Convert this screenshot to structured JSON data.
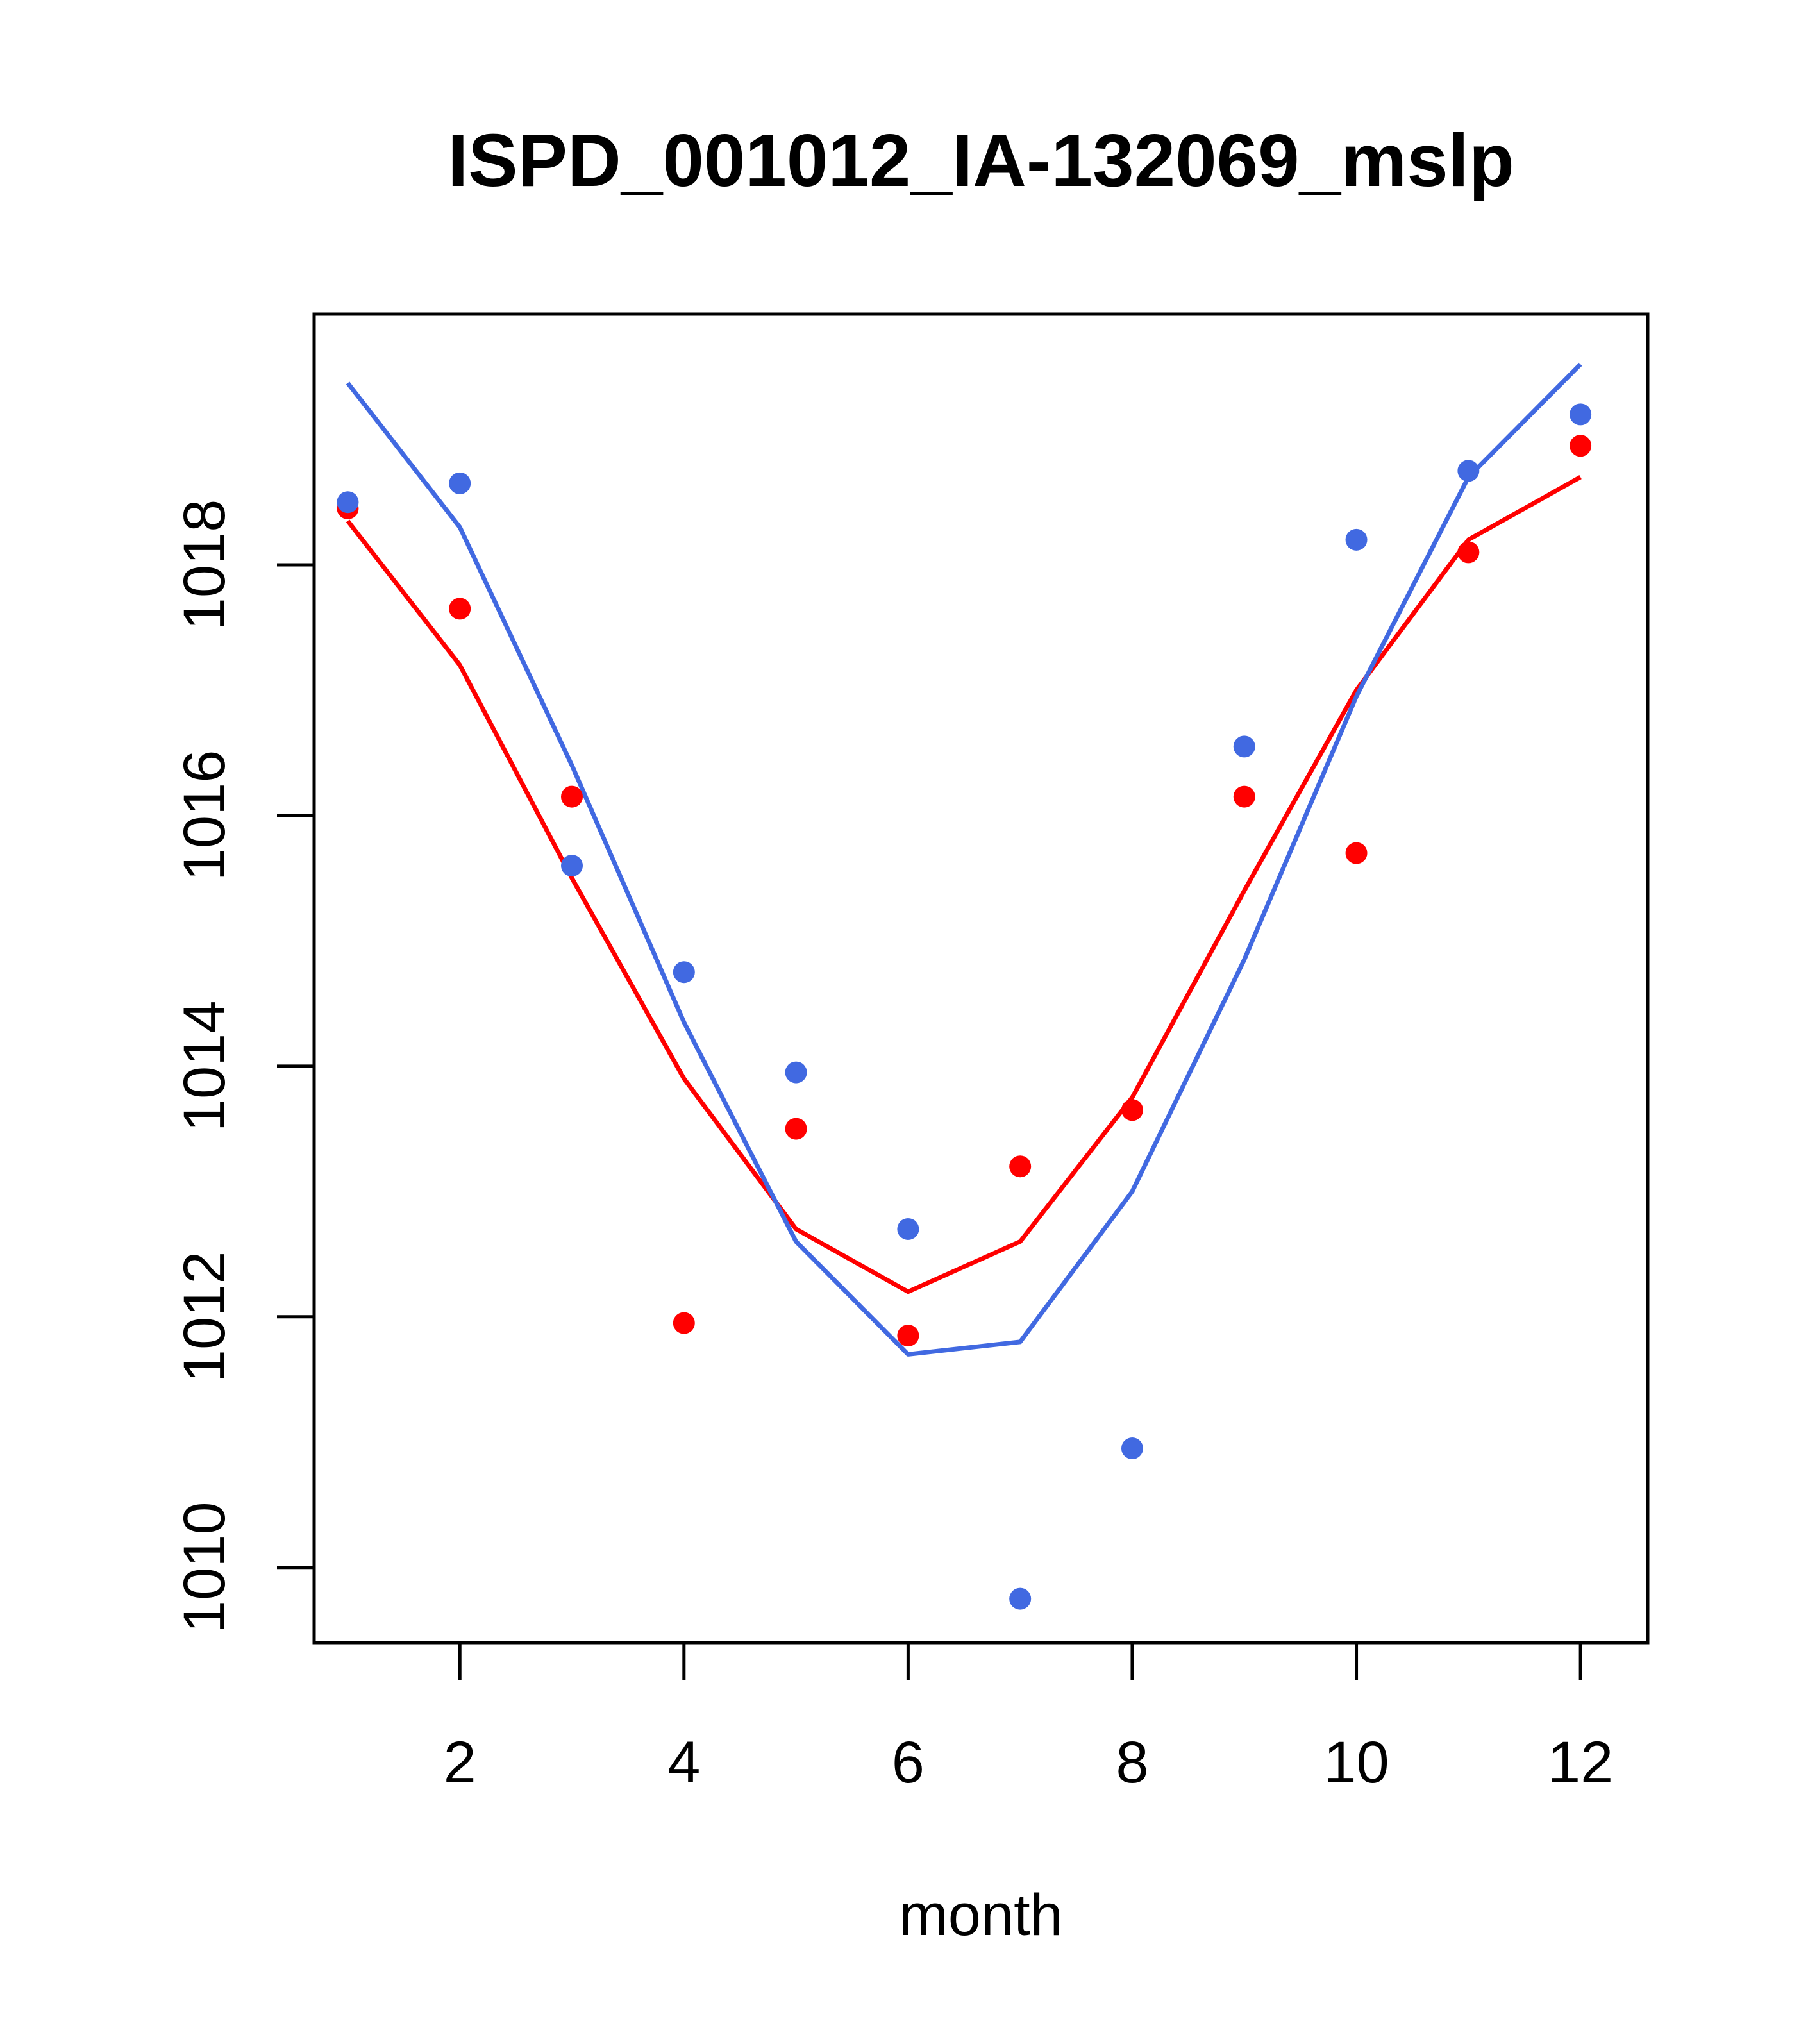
{
  "chart_data": {
    "type": "scatter",
    "title": "ISPD_001012_IA-132069_mslp",
    "xlabel": "month",
    "ylabel": "",
    "xlim": [
      0.7,
      12.6
    ],
    "ylim": [
      1009.4,
      1020.0
    ],
    "xticks": [
      2,
      4,
      6,
      8,
      10,
      12
    ],
    "yticks": [
      1010,
      1012,
      1014,
      1016,
      1018
    ],
    "x": [
      1,
      2,
      3,
      4,
      5,
      6,
      7,
      8,
      9,
      10,
      11,
      12
    ],
    "series": [
      {
        "name": "red points",
        "kind": "points",
        "color": "#ff0000",
        "values": [
          1018.45,
          1017.65,
          1016.15,
          1011.95,
          1013.5,
          1011.85,
          1013.2,
          1013.65,
          1016.15,
          1015.7,
          1018.1,
          1018.95
        ]
      },
      {
        "name": "blue points",
        "kind": "points",
        "color": "#4169e1",
        "values": [
          1018.5,
          1018.65,
          1015.6,
          1014.75,
          1013.95,
          1012.7,
          1009.75,
          1010.95,
          1016.55,
          1018.2,
          1018.75,
          1019.2
        ]
      },
      {
        "name": "red line",
        "kind": "line",
        "color": "#ff0000",
        "values": [
          1018.35,
          1017.2,
          1015.5,
          1013.9,
          1012.7,
          1012.2,
          1012.6,
          1013.75,
          1015.4,
          1017.0,
          1018.2,
          1018.7
        ]
      },
      {
        "name": "blue line",
        "kind": "line",
        "color": "#4169e1",
        "values": [
          1019.45,
          1018.3,
          1016.4,
          1014.35,
          1012.6,
          1011.7,
          1011.8,
          1013.0,
          1014.85,
          1016.95,
          1018.7,
          1019.6
        ]
      }
    ]
  }
}
